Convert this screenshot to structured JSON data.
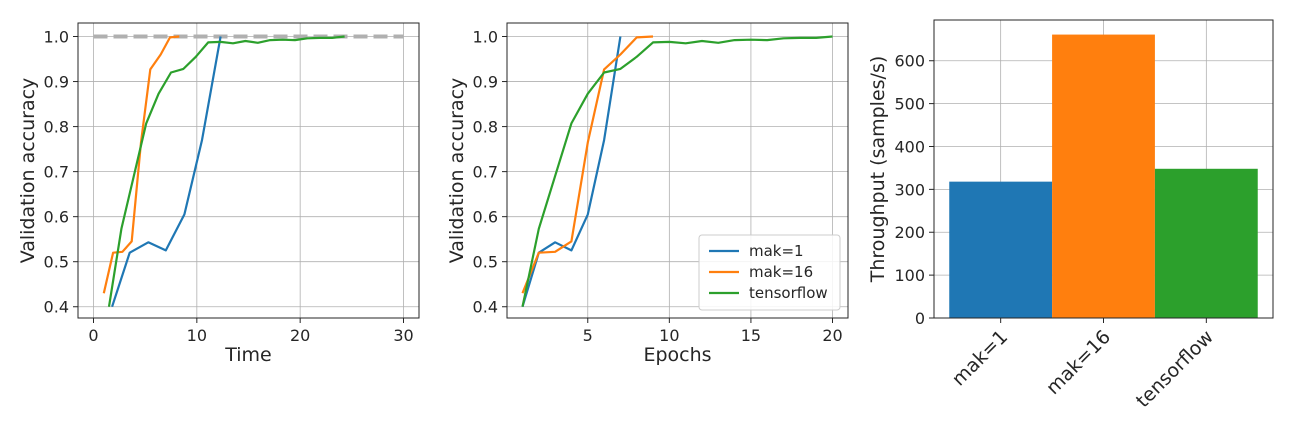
{
  "chart_data": [
    {
      "type": "line",
      "xlabel": "Time",
      "ylabel": "Validation accuracy",
      "xlim": [
        -1.5,
        31.5
      ],
      "ylim": [
        0.375,
        1.03
      ],
      "xticks": [
        0,
        10,
        20,
        30
      ],
      "yticks": [
        0.4,
        0.5,
        0.6,
        0.7,
        0.8,
        0.9,
        1.0
      ],
      "xtick_labels": [
        "0",
        "10",
        "20",
        "30"
      ],
      "ytick_labels": [
        "0.4",
        "0.5",
        "0.6",
        "0.7",
        "0.8",
        "0.9",
        "1.0"
      ],
      "grid": true,
      "reference_line": {
        "y": 1.0,
        "x_range": [
          0,
          30
        ],
        "style": "dashed",
        "color": "#b0b0b0"
      },
      "series": [
        {
          "name": "mak=1",
          "color": "#1f77b4",
          "x": [
            1.8,
            3.5,
            5.3,
            7.0,
            8.8,
            10.5,
            12.3
          ],
          "y": [
            0.4,
            0.52,
            0.543,
            0.525,
            0.605,
            0.77,
            1.0
          ]
        },
        {
          "name": "mak=16",
          "color": "#ff7f0e",
          "x": [
            1.0,
            1.9,
            2.8,
            3.7,
            4.6,
            5.5,
            6.5,
            7.4,
            8.3
          ],
          "y": [
            0.43,
            0.52,
            0.522,
            0.545,
            0.765,
            0.927,
            0.96,
            0.998,
            1.0
          ]
        },
        {
          "name": "tensorflow",
          "color": "#2ca02c",
          "x": [
            1.5,
            2.7,
            3.9,
            5.1,
            6.3,
            7.5,
            8.7,
            9.9,
            11.1,
            12.3,
            13.5,
            14.7,
            15.9,
            17.1,
            18.3,
            19.5,
            20.7,
            21.9,
            23.1,
            24.3
          ],
          "y": [
            0.4,
            0.573,
            0.69,
            0.807,
            0.873,
            0.92,
            0.928,
            0.955,
            0.987,
            0.988,
            0.985,
            0.99,
            0.986,
            0.992,
            0.993,
            0.992,
            0.996,
            0.997,
            0.997,
            1.0
          ]
        }
      ]
    },
    {
      "type": "line",
      "xlabel": "Epochs",
      "ylabel": "Validation accuracy",
      "xlim": [
        0.05,
        20.95
      ],
      "ylim": [
        0.375,
        1.03
      ],
      "xticks": [
        5,
        10,
        15,
        20
      ],
      "yticks": [
        0.4,
        0.5,
        0.6,
        0.7,
        0.8,
        0.9,
        1.0
      ],
      "xtick_labels": [
        "5",
        "10",
        "15",
        "20"
      ],
      "ytick_labels": [
        "0.4",
        "0.5",
        "0.6",
        "0.7",
        "0.8",
        "0.9",
        "1.0"
      ],
      "grid": true,
      "legend": "lower-right",
      "series": [
        {
          "name": "mak=1",
          "color": "#1f77b4",
          "x": [
            1,
            2,
            3,
            4,
            5,
            6,
            7
          ],
          "y": [
            0.4,
            0.52,
            0.543,
            0.525,
            0.605,
            0.77,
            1.0
          ]
        },
        {
          "name": "mak=16",
          "color": "#ff7f0e",
          "x": [
            1,
            2,
            3,
            4,
            5,
            6,
            7,
            8,
            9
          ],
          "y": [
            0.43,
            0.52,
            0.522,
            0.545,
            0.765,
            0.927,
            0.96,
            0.998,
            1.0
          ]
        },
        {
          "name": "tensorflow",
          "color": "#2ca02c",
          "x": [
            1,
            2,
            3,
            4,
            5,
            6,
            7,
            8,
            9,
            10,
            11,
            12,
            13,
            14,
            15,
            16,
            17,
            18,
            19,
            20
          ],
          "y": [
            0.4,
            0.573,
            0.69,
            0.807,
            0.873,
            0.92,
            0.928,
            0.955,
            0.987,
            0.988,
            0.985,
            0.99,
            0.986,
            0.992,
            0.993,
            0.992,
            0.996,
            0.997,
            0.997,
            1.0
          ]
        }
      ]
    },
    {
      "type": "bar",
      "xlabel": "",
      "ylabel": "Throughput (samples/s)",
      "ylim": [
        0,
        695
      ],
      "yticks": [
        0,
        100,
        200,
        300,
        400,
        500,
        600
      ],
      "ytick_labels": [
        "0",
        "100",
        "200",
        "300",
        "400",
        "500",
        "600"
      ],
      "grid": true,
      "categories": [
        "mak=1",
        "mak=16",
        "tensorflow"
      ],
      "values": [
        318,
        661,
        348
      ],
      "colors": [
        "#1f77b4",
        "#ff7f0e",
        "#2ca02c"
      ]
    }
  ]
}
